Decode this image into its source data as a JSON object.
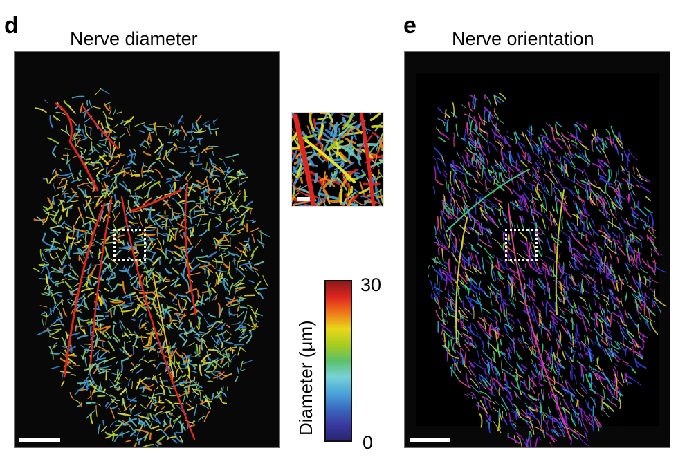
{
  "panels": [
    {
      "letter": "d",
      "title": "Nerve diameter",
      "content": "heart-nerve-network-colored-by-diameter",
      "scale_bar": "unlabeled"
    },
    {
      "letter": "e",
      "title": "Nerve orientation",
      "content": "heart-nerve-network-colored-by-orientation",
      "scale_bar": "unlabeled"
    }
  ],
  "inset": {
    "content": "zoomed-region-of-dotted-box-colored-by-diameter",
    "scale_bar": "unlabeled"
  },
  "colorbar": {
    "label": "Diameter (μm)",
    "max_label": "30",
    "min_label": "0",
    "colors": [
      "#8b1a1a",
      "#e0261f",
      "#f07a1a",
      "#e8d81a",
      "#a8cc1e",
      "#5cc06a",
      "#78d2d6",
      "#4aa6da",
      "#3a6ac0",
      "#3a3aa0",
      "#2a2470"
    ]
  },
  "palettes": {
    "diameter": [
      "#e0261f",
      "#f08a1a",
      "#e8e020",
      "#a6d030",
      "#6cc8b8",
      "#48a8d8",
      "#3a8ad0"
    ],
    "orientation": [
      "#b020d0",
      "#7020e0",
      "#3040e0",
      "#20b0e0",
      "#30d080",
      "#d0d020",
      "#e04090"
    ]
  },
  "chart_data": {
    "type": "heatmap",
    "title": "Nerve diameter / Nerve orientation",
    "colorbar": {
      "label": "Diameter (μm)",
      "range": [
        0,
        30
      ],
      "ticks": [
        0,
        30
      ]
    },
    "panels": [
      "d: Nerve diameter",
      "e: Nerve orientation"
    ]
  }
}
